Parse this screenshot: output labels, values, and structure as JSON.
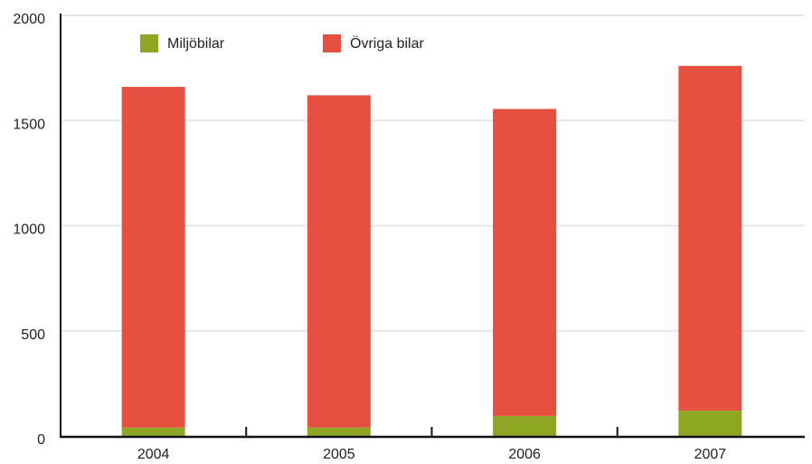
{
  "chart_data": {
    "type": "bar",
    "stacked": true,
    "categories": [
      "2004",
      "2005",
      "2006",
      "2007"
    ],
    "series": [
      {
        "name": "Miljöbilar",
        "color": "#8fa524",
        "values": [
          40,
          40,
          95,
          120
        ]
      },
      {
        "name": "Övriga bilar",
        "color": "#e55040",
        "values": [
          1620,
          1580,
          1460,
          1640
        ]
      }
    ],
    "ylim": [
      0,
      2000
    ],
    "yticks": [
      0,
      500,
      1000,
      1500,
      2000
    ],
    "grid": true,
    "legend": "top"
  }
}
